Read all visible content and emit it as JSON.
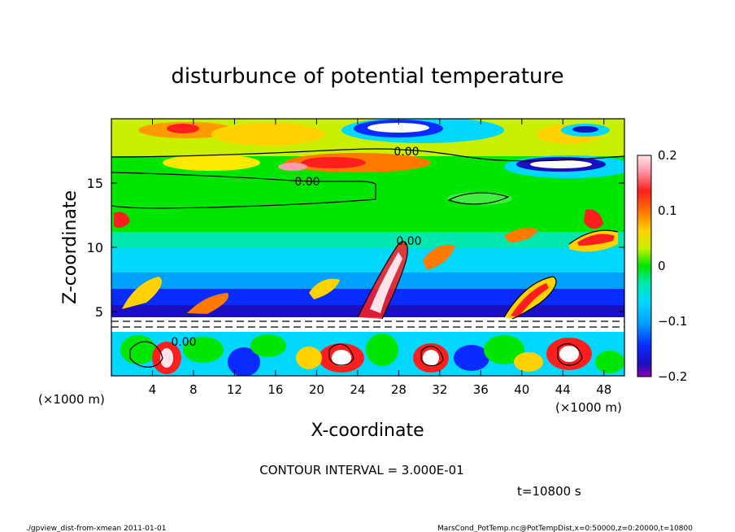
{
  "chart_data": {
    "type": "heatmap",
    "title": "disturbunce of potential temperature",
    "xlabel": "X-coordinate",
    "ylabel": "Z-coordinate",
    "x_unit_left": "(×1000 m)",
    "x_unit_right": "(×1000 m)",
    "xlim": [
      0,
      50
    ],
    "ylim": [
      0,
      20
    ],
    "x_ticks": [
      4,
      8,
      12,
      16,
      20,
      24,
      28,
      32,
      36,
      40,
      44,
      48
    ],
    "y_ticks": [
      5,
      10,
      15
    ],
    "colorbar": {
      "range": [
        -0.2,
        0.2
      ],
      "ticks": [
        "0.2",
        "0.1",
        "0",
        "−0.1",
        "−0.2"
      ],
      "tick_values": [
        0.2,
        0.1,
        0,
        -0.1,
        -0.2
      ]
    },
    "contour_labels": [
      "0.00",
      "0.00",
      "0.00",
      "0.00"
    ],
    "contour_interval_text": "CONTOUR INTERVAL = 3.000E-01",
    "time_text": "t=10800 s",
    "footer_left": "./gpview_dist-from-xmean  2011-01-01",
    "footer_right": "MarsCond_PotTemp.nc@PotTempDist,x=0:50000,z=0:20000,t=10800",
    "colors": {
      "max": "#ffc0cb",
      "high": "#ff1e1e",
      "mid_high": "#ffc800",
      "zero": "#00e600",
      "mid_low": "#00e5ff",
      "low": "#0a2bff",
      "min": "#8b00b0"
    }
  }
}
